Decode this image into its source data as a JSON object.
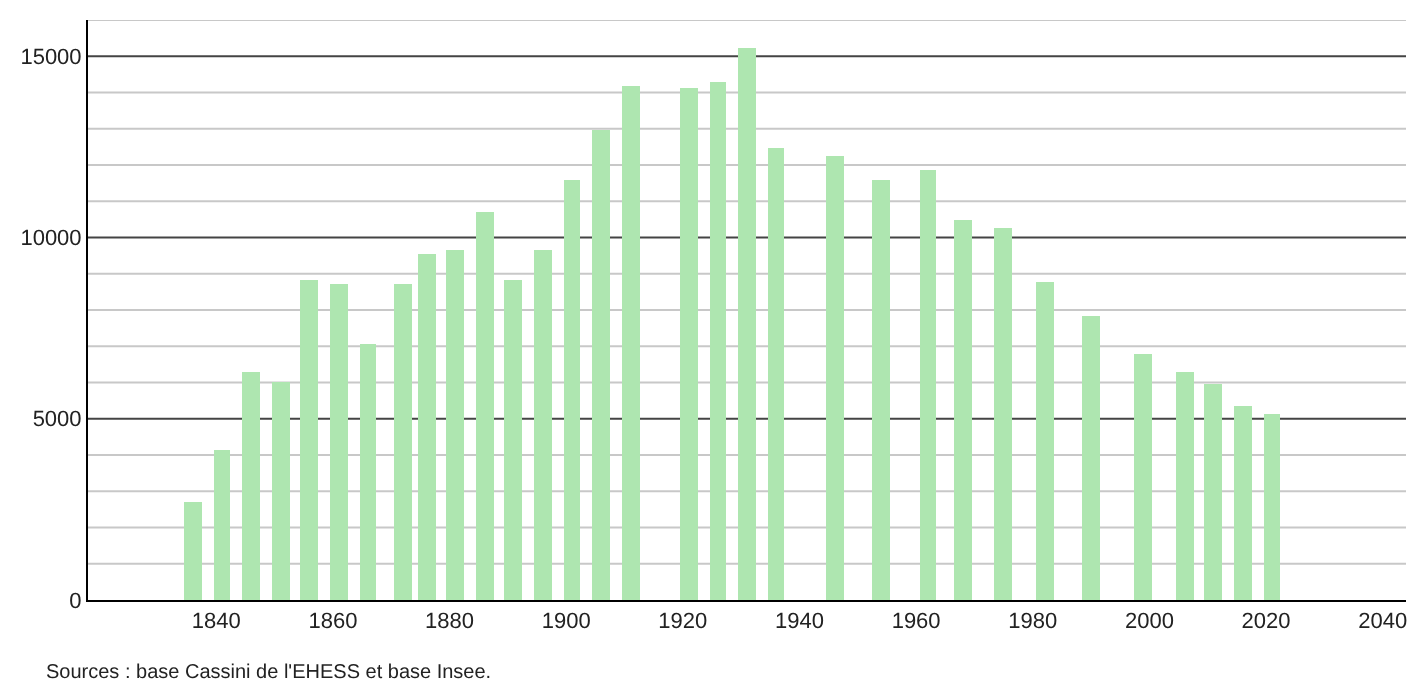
{
  "chart_data": {
    "type": "bar",
    "color": "#aee6b0",
    "x": [
      1836,
      1841,
      1846,
      1851,
      1856,
      1861,
      1866,
      1872,
      1876,
      1881,
      1886,
      1891,
      1896,
      1901,
      1906,
      1911,
      1921,
      1926,
      1931,
      1936,
      1946,
      1954,
      1962,
      1968,
      1975,
      1982,
      1990,
      1999,
      2006,
      2011,
      2016,
      2021
    ],
    "values": [
      2710,
      4150,
      6310,
      6030,
      8850,
      8740,
      7080,
      8690,
      9570,
      9630,
      10680,
      8850,
      9630,
      11570,
      12950,
      14170,
      14110,
      14280,
      15220,
      12450,
      12230,
      11570,
      11840,
      10510,
      10240,
      8800,
      7860,
      6810,
      6310,
      5980,
      5370,
      5150
    ],
    "xlim": [
      1818,
      2044
    ],
    "ylim": [
      0,
      16000
    ],
    "xticks": [
      1840,
      1860,
      1880,
      1900,
      1920,
      1940,
      1960,
      1980,
      2000,
      2020,
      2040
    ],
    "yticks": [
      0,
      {
        "value": 1000,
        "label": null
      },
      {
        "value": 2000,
        "label": null
      },
      {
        "value": 3000,
        "label": null
      },
      {
        "value": 4000,
        "label": null
      },
      5000,
      {
        "value": 6000,
        "label": null
      },
      {
        "value": 7000,
        "label": null
      },
      {
        "value": 8000,
        "label": null
      },
      {
        "value": 9000,
        "label": null
      },
      10000,
      {
        "value": 11000,
        "label": null
      },
      {
        "value": 12000,
        "label": null
      },
      {
        "value": 13000,
        "label": null
      },
      {
        "value": 14000,
        "label": null
      },
      15000,
      {
        "value": 16000,
        "label": null
      }
    ],
    "grid": "y",
    "annotations": [
      "Sources : base Cassini de l'EHESS et base Insee."
    ]
  }
}
